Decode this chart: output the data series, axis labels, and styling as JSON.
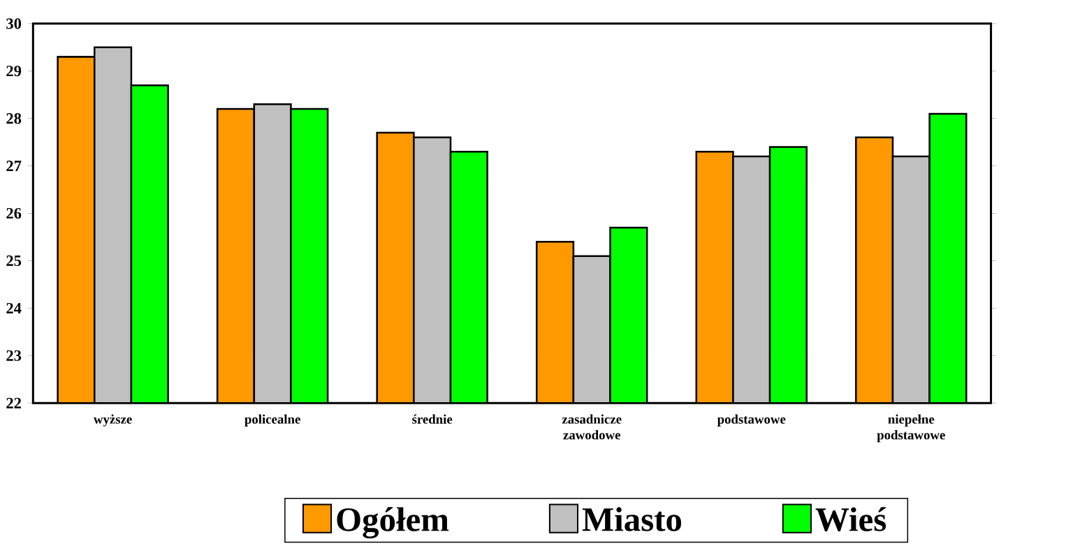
{
  "chart_data": {
    "type": "bar",
    "categories": [
      "wyższe",
      "policealne",
      "średnie",
      "zasadnicze zawodowe",
      "podstawowe",
      "niepełne podstawowe"
    ],
    "series": [
      {
        "name": "Ogółem",
        "color": "#ff9900",
        "values": [
          29.3,
          28.2,
          27.7,
          25.4,
          27.3,
          27.6
        ]
      },
      {
        "name": "Miasto",
        "color": "#c0c0c0",
        "values": [
          29.5,
          28.3,
          27.6,
          25.1,
          27.2,
          27.2
        ]
      },
      {
        "name": "Wieś",
        "color": "#00ff00",
        "values": [
          28.7,
          28.2,
          27.3,
          25.7,
          27.4,
          28.1
        ]
      }
    ],
    "ylim": [
      22,
      30
    ],
    "yticks": [
      22,
      23,
      24,
      25,
      26,
      27,
      28,
      29,
      30
    ],
    "grid": false,
    "legend": "bottom"
  }
}
